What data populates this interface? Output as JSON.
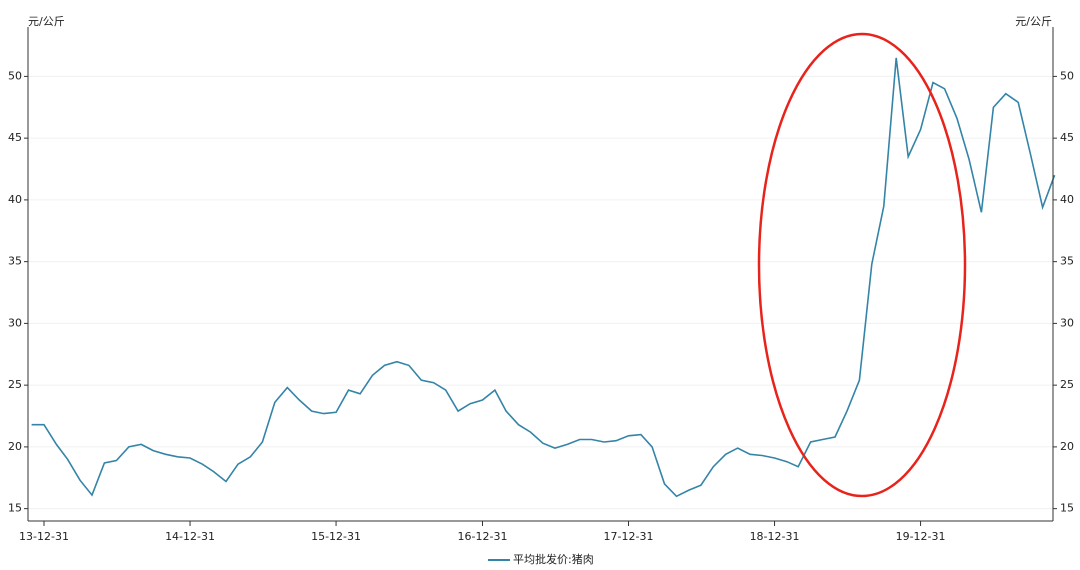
{
  "chart_data": {
    "type": "line",
    "y_label": "元/公斤",
    "y2_label": "元/公斤",
    "x": [
      "13-11-30",
      "13-12-31",
      "14-01-31",
      "14-02-28",
      "14-03-31",
      "14-04-30",
      "14-05-31",
      "14-06-30",
      "14-07-31",
      "14-08-31",
      "14-09-30",
      "14-10-31",
      "14-11-30",
      "14-12-31",
      "15-01-31",
      "15-02-28",
      "15-03-31",
      "15-04-30",
      "15-05-31",
      "15-06-30",
      "15-07-31",
      "15-08-31",
      "15-09-30",
      "15-10-31",
      "15-11-30",
      "15-12-31",
      "16-01-31",
      "16-02-29",
      "16-03-31",
      "16-04-30",
      "16-05-31",
      "16-06-30",
      "16-07-31",
      "16-08-31",
      "16-09-30",
      "16-10-31",
      "16-11-30",
      "16-12-31",
      "17-01-31",
      "17-02-28",
      "17-03-31",
      "17-04-30",
      "17-05-31",
      "17-06-30",
      "17-07-31",
      "17-08-31",
      "17-09-30",
      "17-10-31",
      "17-11-30",
      "17-12-31",
      "18-01-31",
      "18-02-28",
      "18-03-31",
      "18-04-30",
      "18-05-31",
      "18-06-30",
      "18-07-31",
      "18-08-31",
      "18-09-30",
      "18-10-31",
      "18-11-30",
      "18-12-31",
      "19-01-31",
      "19-02-28",
      "19-03-31",
      "19-04-30",
      "19-05-31",
      "19-06-30",
      "19-07-31",
      "19-08-31",
      "19-09-30",
      "19-10-31",
      "19-11-30",
      "19-12-31",
      "20-01-31",
      "20-02-29",
      "20-03-31",
      "20-04-30",
      "20-05-31",
      "20-06-30",
      "20-07-31",
      "20-08-31",
      "20-09-30",
      "20-10-31",
      "20-11-30"
    ],
    "series": [
      {
        "name": "平均批发价:猪肉",
        "color": "#3484a8",
        "values": [
          21.8,
          21.8,
          20.2,
          19.0,
          17.3,
          16.1,
          18.7,
          18.9,
          20.0,
          20.2,
          19.7,
          19.4,
          19.2,
          19.1,
          18.6,
          18.0,
          17.2,
          18.6,
          19.2,
          20.4,
          23.6,
          24.8,
          23.8,
          22.9,
          22.7,
          22.8,
          24.6,
          24.3,
          25.8,
          26.6,
          26.9,
          26.6,
          25.4,
          25.2,
          24.6,
          22.9,
          23.5,
          23.8,
          24.6,
          22.9,
          21.8,
          21.2,
          20.3,
          19.9,
          20.2,
          20.6,
          20.6,
          20.4,
          20.5,
          20.9,
          21.0,
          20.0,
          17.0,
          16.0,
          16.5,
          16.9,
          18.4,
          19.4,
          19.9,
          19.4,
          19.3,
          19.1,
          18.8,
          18.4,
          20.4,
          20.6,
          20.8,
          22.9,
          25.4,
          34.8,
          39.5,
          51.5,
          43.5,
          45.7,
          49.5,
          49.0,
          46.6,
          43.3,
          39.0,
          47.5,
          48.6,
          47.9,
          43.8,
          39.4,
          42.0
        ]
      }
    ],
    "xlim": [
      "13-11-21",
      "20-11-26"
    ],
    "xticks": [
      "13-12-31",
      "14-12-31",
      "15-12-31",
      "16-12-31",
      "17-12-31",
      "18-12-31",
      "19-12-31"
    ],
    "ylim": [
      14,
      54
    ],
    "yticks": [
      15,
      20,
      25,
      30,
      35,
      40,
      45,
      50
    ],
    "y2lim": [
      14,
      54
    ],
    "y2ticks": [
      15,
      20,
      25,
      30,
      35,
      40,
      45,
      50
    ],
    "grid": true,
    "legend": "bottom"
  }
}
